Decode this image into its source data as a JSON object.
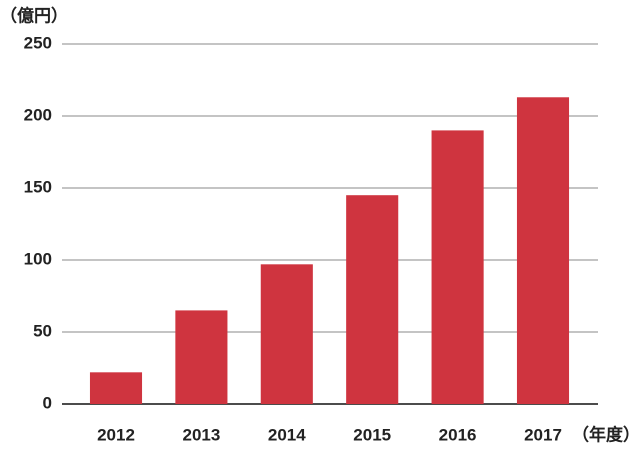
{
  "chart_data": {
    "type": "bar",
    "y_label": "（億円）",
    "x_label": "（年度）",
    "categories": [
      "2012",
      "2013",
      "2014",
      "2015",
      "2016",
      "2017"
    ],
    "values": [
      22,
      65,
      97,
      145,
      190,
      213
    ],
    "color": "#cf343f",
    "ylim": [
      0,
      250
    ],
    "yticks": [
      0,
      50,
      100,
      150,
      200,
      250
    ],
    "grid": true
  }
}
